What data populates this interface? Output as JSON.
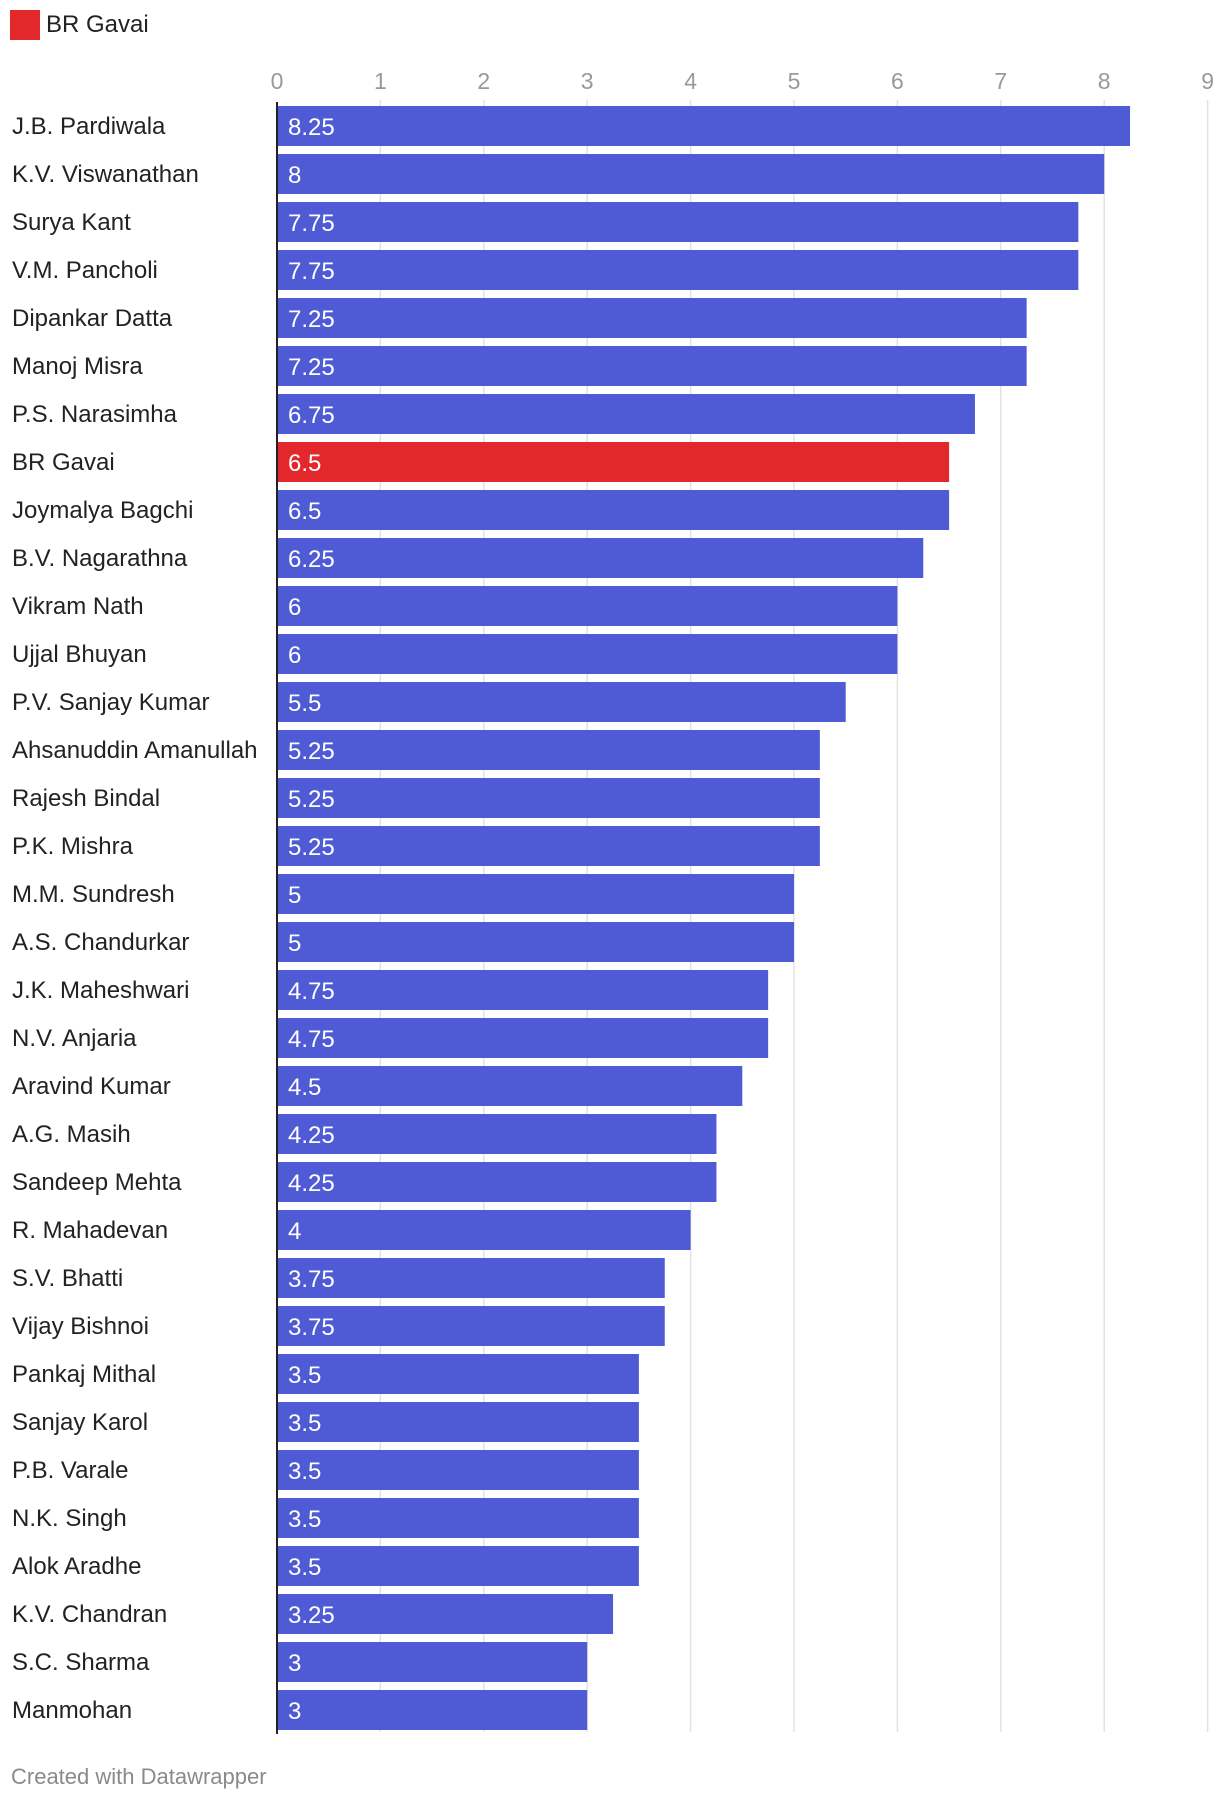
{
  "legend": {
    "label": "BR Gavai",
    "color": "#e3282b"
  },
  "footer": "Created with Datawrapper",
  "colors": {
    "bar": "#4f5bd5",
    "highlight": "#e3282b",
    "grid": "#e3e3e3",
    "axis": "#222222",
    "tick_label": "#999999",
    "value_label": "#ffffff",
    "category_label": "#222222"
  },
  "chart_data": {
    "type": "bar",
    "orientation": "horizontal",
    "xlim": [
      0,
      9
    ],
    "xticks": [
      0,
      1,
      2,
      3,
      4,
      5,
      6,
      7,
      8,
      9
    ],
    "grid": true,
    "legend_position": "top-left",
    "highlight_category": "BR Gavai",
    "categories": [
      "J.B. Pardiwala",
      "K.V. Viswanathan",
      "Surya Kant",
      "V.M. Pancholi",
      "Dipankar Datta",
      "Manoj Misra",
      "P.S. Narasimha",
      "BR Gavai",
      "Joymalya Bagchi",
      "B.V. Nagarathna",
      "Vikram Nath",
      "Ujjal Bhuyan",
      "P.V. Sanjay Kumar",
      "Ahsanuddin Amanullah",
      "Rajesh Bindal",
      "P.K. Mishra",
      "M.M. Sundresh",
      "A.S. Chandurkar",
      "J.K. Maheshwari",
      "N.V. Anjaria",
      "Aravind Kumar",
      "A.G. Masih",
      "Sandeep Mehta",
      "R. Mahadevan",
      "S.V. Bhatti",
      "Vijay Bishnoi",
      "Pankaj Mithal",
      "Sanjay Karol",
      "P.B. Varale",
      "N.K. Singh",
      "Alok Aradhe",
      "K.V. Chandran",
      "S.C. Sharma",
      "Manmohan"
    ],
    "values": [
      8.25,
      8,
      7.75,
      7.75,
      7.25,
      7.25,
      6.75,
      6.5,
      6.5,
      6.25,
      6,
      6,
      5.5,
      5.25,
      5.25,
      5.25,
      5,
      5,
      4.75,
      4.75,
      4.5,
      4.25,
      4.25,
      4,
      3.75,
      3.75,
      3.5,
      3.5,
      3.5,
      3.5,
      3.5,
      3.25,
      3,
      3
    ]
  }
}
